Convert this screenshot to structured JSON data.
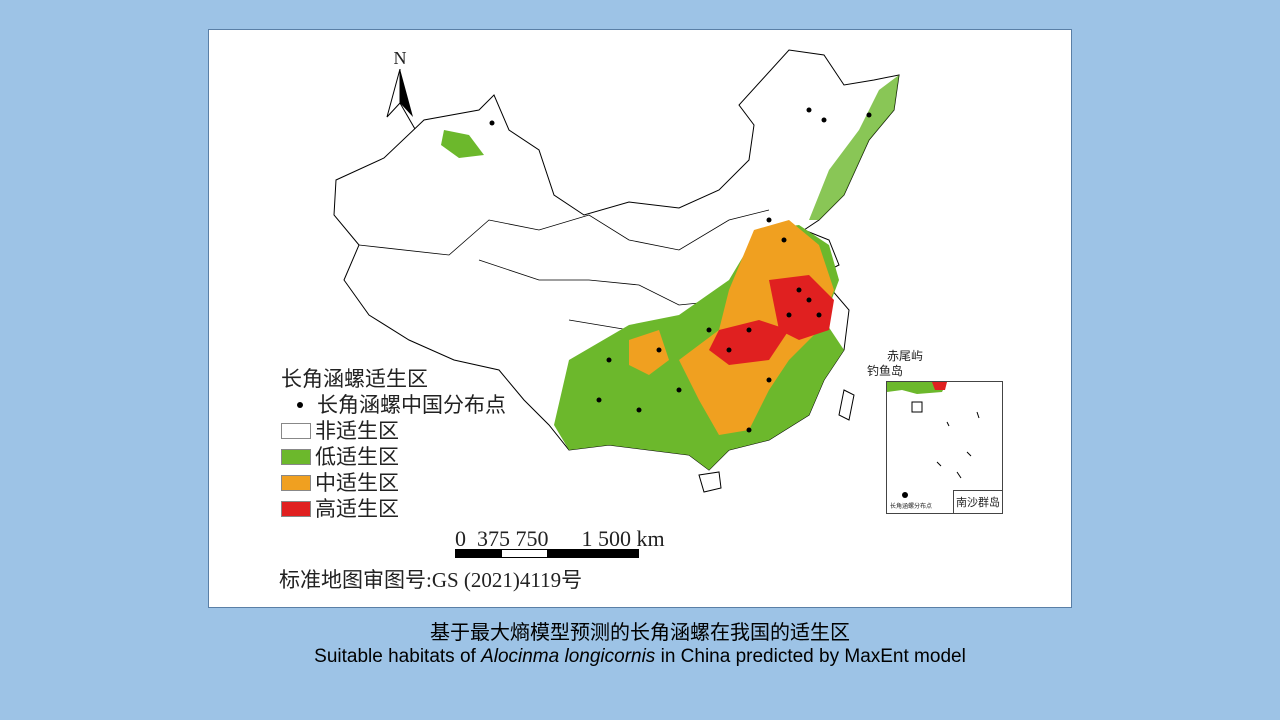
{
  "map": {
    "north_label": "N",
    "legend": {
      "title": "长角涵螺适生区",
      "points_label": "长角涵螺中国分布点",
      "classes": [
        {
          "label": "非适生区",
          "color": "#ffffff"
        },
        {
          "label": "低适生区",
          "color": "#6cb82c"
        },
        {
          "label": "中适生区",
          "color": "#f0a020"
        },
        {
          "label": "高适生区",
          "color": "#e02020"
        }
      ]
    },
    "scale": {
      "ticks": "0  375 750      1 500 km"
    },
    "approval": "标准地图审图号:GS (2021)4119号",
    "islands": {
      "chiweiyu": "赤尾屿",
      "diaoyudao": "钓鱼岛"
    },
    "inset": {
      "label": "南沙群岛",
      "note": "长角涵螺分布点"
    }
  },
  "caption": {
    "zh": "基于最大熵模型预测的长角涵螺在我国的适生区",
    "en_prefix": "Suitable habitats of ",
    "en_species": "Alocinma longicornis",
    "en_suffix": " in China predicted by MaxEnt model"
  }
}
